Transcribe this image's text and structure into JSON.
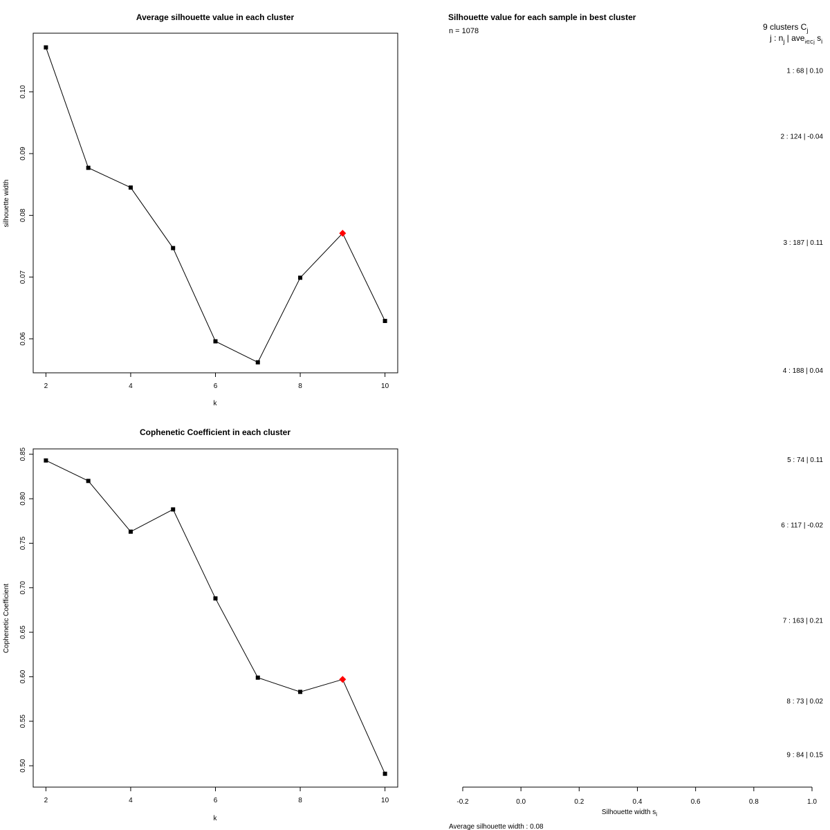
{
  "chart_data": [
    {
      "type": "line",
      "title": "Average silhouette value in each cluster",
      "xlabel": "k",
      "ylabel": "silhouette width",
      "x": [
        2,
        3,
        4,
        5,
        6,
        7,
        8,
        9,
        10
      ],
      "x_ticks": [
        "2",
        "4",
        "6",
        "8",
        "10"
      ],
      "y_ticks": [
        "0.06",
        "0.07",
        "0.08",
        "0.09",
        "0.10"
      ],
      "xlim": [
        1.7,
        10.3
      ],
      "ylim": [
        0.0545,
        0.1095
      ],
      "values": [
        0.1072,
        0.0877,
        0.0845,
        0.0747,
        0.0596,
        0.0562,
        0.0699,
        0.0771,
        0.0629
      ],
      "highlight": {
        "x": 9,
        "y": 0.0771
      },
      "point_color": "#000000",
      "highlight_color": "#ff0000",
      "grid": false
    },
    {
      "type": "line",
      "title": "Cophenetic Coefficient in each cluster",
      "xlabel": "k",
      "ylabel": "Cophenetic Coefficient",
      "x": [
        2,
        3,
        4,
        5,
        6,
        7,
        8,
        9,
        10
      ],
      "x_ticks": [
        "2",
        "4",
        "6",
        "8",
        "10"
      ],
      "y_ticks": [
        "0.50",
        "0.55",
        "0.60",
        "0.65",
        "0.70",
        "0.75",
        "0.80",
        "0.85"
      ],
      "xlim": [
        1.7,
        10.3
      ],
      "ylim": [
        0.476,
        0.856
      ],
      "values": [
        0.843,
        0.82,
        0.763,
        0.788,
        0.688,
        0.599,
        0.583,
        0.597,
        0.491
      ],
      "highlight": {
        "x": 9,
        "y": 0.597
      },
      "point_color": "#000000",
      "highlight_color": "#ff0000",
      "grid": false
    },
    {
      "type": "bar",
      "title": "Silhouette value for each sample in best cluster",
      "n_label": "n = 1078",
      "header_line1": "9  clusters  C",
      "header_line1_sub": "j",
      "header_line2": "j :  n",
      "header_line2_sub": "j",
      "header_line2_rest": " | ave",
      "header_line2_sub2": "i∈Cj",
      "header_line2_end": "  s",
      "header_line2_sub3": "i",
      "xlabel": "Silhouette width s",
      "xlabel_sub": "i",
      "x_ticks": [
        "-0.2",
        "0.0",
        "0.2",
        "0.4",
        "0.6",
        "0.8",
        "1.0"
      ],
      "xlim": [
        -0.2,
        1.0
      ],
      "footer": "Average silhouette width :  0.08",
      "clusters": [
        {
          "label": "1 :   68   |  0.10",
          "n": 68,
          "ave": 0.1
        },
        {
          "label": "2 :   124   |  -0.04",
          "n": 124,
          "ave": -0.04
        },
        {
          "label": "3 :   187   |  0.11",
          "n": 187,
          "ave": 0.11
        },
        {
          "label": "4 :   188   |  0.04",
          "n": 188,
          "ave": 0.04
        },
        {
          "label": "5 :   74   |  0.11",
          "n": 74,
          "ave": 0.11
        },
        {
          "label": "6 :   117   |  -0.02",
          "n": 117,
          "ave": -0.02
        },
        {
          "label": "7 :   163   |  0.21",
          "n": 163,
          "ave": 0.21
        },
        {
          "label": "8 :   73   |  0.02",
          "n": 73,
          "ave": 0.02
        },
        {
          "label": "9 :   84   |  0.15",
          "n": 84,
          "ave": 0.15
        }
      ]
    }
  ]
}
